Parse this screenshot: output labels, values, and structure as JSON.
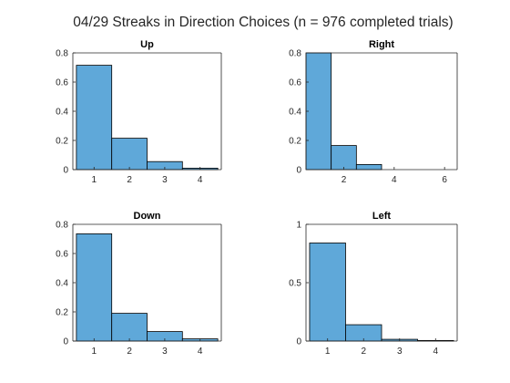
{
  "title": "04/29 Streaks in Direction Choices (n = 976 completed trials)",
  "colors": {
    "bar_fill": "#5fa8d9",
    "bar_edge": "#000000",
    "axis": "#262626",
    "background": "#ffffff"
  },
  "chart_data": [
    {
      "type": "bar",
      "title": "Up",
      "categories": [
        "1",
        "2",
        "3",
        "4"
      ],
      "x": [
        1,
        2,
        3,
        4
      ],
      "values": [
        0.715,
        0.215,
        0.055,
        0.01
      ],
      "xlim": [
        0.4,
        4.6
      ],
      "ylim": [
        0,
        0.8
      ],
      "xticks": [
        1,
        2,
        3,
        4
      ],
      "xtick_labels": [
        "1",
        "2",
        "3",
        "4"
      ],
      "yticks": [
        0,
        0.2,
        0.4,
        0.6,
        0.8
      ],
      "ytick_labels": [
        "0",
        "0.2",
        "0.4",
        "0.6",
        "0.8"
      ],
      "xlabel": "",
      "ylabel": "",
      "grid": false,
      "legend": false
    },
    {
      "type": "bar",
      "title": "Right",
      "categories": [
        "1",
        "2",
        "3",
        "4",
        "5",
        "6"
      ],
      "x": [
        1,
        2,
        3,
        4,
        5,
        6
      ],
      "values": [
        0.8,
        0.165,
        0.035,
        0.0,
        0.0,
        0.0
      ],
      "xlim": [
        0.5,
        6.5
      ],
      "ylim": [
        0,
        0.8
      ],
      "xticks": [
        2,
        4,
        6
      ],
      "xtick_labels": [
        "2",
        "4",
        "6"
      ],
      "yticks": [
        0,
        0.2,
        0.4,
        0.6,
        0.8
      ],
      "ytick_labels": [
        "0",
        "0.2",
        "0.4",
        "0.6",
        "0.8"
      ],
      "xlabel": "",
      "ylabel": "",
      "grid": false,
      "legend": false
    },
    {
      "type": "bar",
      "title": "Down",
      "categories": [
        "1",
        "2",
        "3",
        "4"
      ],
      "x": [
        1,
        2,
        3,
        4
      ],
      "values": [
        0.735,
        0.19,
        0.065,
        0.015
      ],
      "xlim": [
        0.4,
        4.6
      ],
      "ylim": [
        0,
        0.8
      ],
      "xticks": [
        1,
        2,
        3,
        4
      ],
      "xtick_labels": [
        "1",
        "2",
        "3",
        "4"
      ],
      "yticks": [
        0,
        0.2,
        0.4,
        0.6,
        0.8
      ],
      "ytick_labels": [
        "0",
        "0.2",
        "0.4",
        "0.6",
        "0.8"
      ],
      "xlabel": "",
      "ylabel": "",
      "grid": false,
      "legend": false
    },
    {
      "type": "bar",
      "title": "Left",
      "categories": [
        "1",
        "2",
        "3",
        "4"
      ],
      "x": [
        1,
        2,
        3,
        4
      ],
      "values": [
        0.84,
        0.14,
        0.015,
        0.005
      ],
      "xlim": [
        0.4,
        4.6
      ],
      "ylim": [
        0,
        1
      ],
      "xticks": [
        1,
        2,
        3,
        4
      ],
      "xtick_labels": [
        "1",
        "2",
        "3",
        "4"
      ],
      "yticks": [
        0,
        0.5,
        1
      ],
      "ytick_labels": [
        "0",
        "0.5",
        "1"
      ],
      "xlabel": "",
      "ylabel": "",
      "grid": false,
      "legend": false
    }
  ]
}
